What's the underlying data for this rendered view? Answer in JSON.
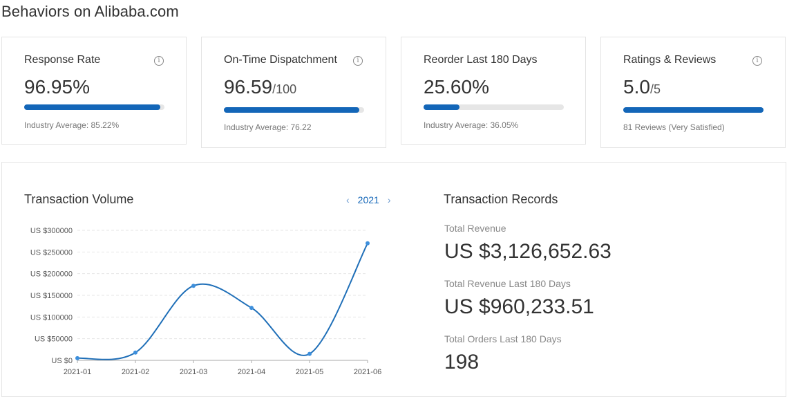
{
  "page": {
    "title": "Behaviors on Alibaba.com"
  },
  "metrics": [
    {
      "label": "Response Rate",
      "value": "96.95%",
      "suffix": "",
      "bar_fraction": 0.97,
      "note": "Industry Average: 85.22%",
      "has_info": true
    },
    {
      "label": "On-Time Dispatchment",
      "value": "96.59",
      "suffix": "/100",
      "bar_fraction": 0.9659,
      "note": "Industry Average: 76.22",
      "has_info": true
    },
    {
      "label": "Reorder Last 180 Days",
      "value": "25.60%",
      "suffix": "",
      "bar_fraction": 0.256,
      "note": "Industry Average: 36.05%",
      "has_info": false
    },
    {
      "label": "Ratings & Reviews",
      "value": "5.0",
      "suffix": "/5",
      "bar_fraction": 1.0,
      "note": "81 Reviews (Very Satisfied)",
      "has_info": true
    }
  ],
  "transaction_volume": {
    "title": "Transaction Volume",
    "year_nav": {
      "prev_icon": "chevron-left-icon",
      "year": "2021",
      "next_icon": "chevron-right-icon"
    }
  },
  "chart_data": {
    "type": "line",
    "title": "",
    "xlabel": "",
    "ylabel": "",
    "x": [
      "2021-01",
      "2021-02",
      "2021-03",
      "2021-04",
      "2021-05",
      "2021-06"
    ],
    "series": [
      {
        "values": [
          5000,
          18000,
          172000,
          121000,
          15000,
          270000
        ]
      }
    ],
    "y_ticks": [
      "US $0",
      "US $50000",
      "US $100000",
      "US $150000",
      "US $200000",
      "US $250000",
      "US $300000"
    ],
    "ylim": [
      0,
      300000
    ],
    "grid": true,
    "smooth": true,
    "line_color": "#1f6fb8",
    "point_color": "#3d8fdc"
  },
  "transaction_records": {
    "title": "Transaction Records",
    "items": [
      {
        "label": "Total Revenue",
        "value": "US $3,126,652.63"
      },
      {
        "label": "Total Revenue Last 180 Days",
        "value": "US $960,233.51"
      },
      {
        "label": "Total Orders Last 180 Days",
        "value": "198"
      }
    ]
  },
  "colors": {
    "accent": "#1366b8",
    "bar_track": "#e6e6e6",
    "border": "#e4e4e4"
  }
}
